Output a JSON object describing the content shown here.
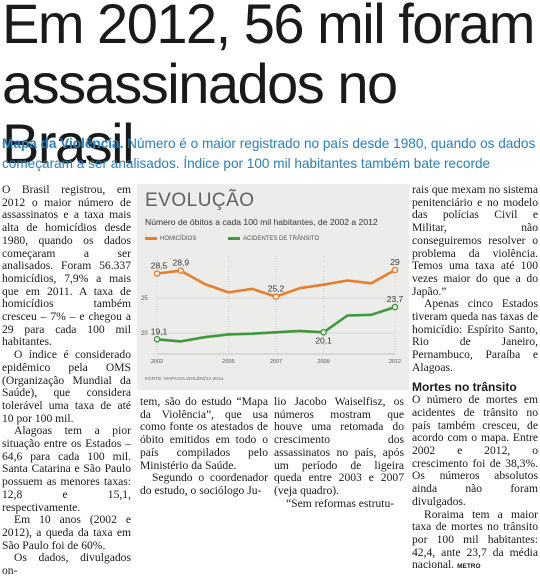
{
  "headline": "Em 2012, 56 mil foram assassinados no Brasil",
  "standfirst": {
    "kicker": "Mapa da Violência.",
    "text": " Número é o maior registrado no país desde 1980, quando os dados começaram a ser analisados. Índice por 100 mil habitantes também bate recorde"
  },
  "article": {
    "col1": [
      "O Brasil registrou, em 2012 o maior número de assassinatos e a taxa mais alta de homicídios desde 1980, quando os dados começaram a ser analisados. Foram 56.337 homicídios, 7,9% a mais que em 2011. A taxa de homicídios também cresceu – 7% – e chegou a 29 para cada 100 mil habitantes.",
      "O índice é considerado epidêmico pela OMS (Organização Mundial da Saúde), que considera tolerável uma taxa de até 10 por 100 mil.",
      "Alagoas tem a pior situação entre os Estados – 64,6 para cada 100 mil. Santa Catarina e São Paulo possuem as menores taxas: 12,8 e 15,1, respectivamente.",
      "Em 10 anos (2002 e 2012), a queda da taxa em São Paulo foi de 60%.",
      "Os dados, divulgados on-"
    ],
    "col2": [
      "tem, são do estudo “Mapa da Violência”, que usa como fonte os atestados de óbito emitidos em todo o país compilados pelo Ministério da Saúde.",
      "Segundo o coordenador do estudo, o sociólogo Ju-"
    ],
    "col3": [
      "lio Jacobo Waiselfisz, os números mostram que houve uma retomada do crescimento dos assassinatos no país, após um período de ligeira queda entre 2003 e 2007 (veja quadro).",
      "“Sem reformas estrutu-"
    ],
    "col4": [
      "rais que mexam no sistema penitenciário e no modelo das polícias Civil e Militar, não conseguiremos resolver o problema da violência. Temos uma taxa até 100 vezes maior do que a do Japão.”",
      "Apenas cinco Estados tiveram queda nas taxas de homicídio: Espírito Santo, Rio de Janeiro, Pernambuco, Paraíba e Alagoas."
    ],
    "subhead": "Mortes no trânsito",
    "col4b": [
      "O número de mortes em acidentes de trânsito no país também cresceu, de acordo com o mapa. Entre 2002 e 2012, o crescimento foi de 38,3%. Os números absolutos ainda não foram divulgados.",
      "Roraima tem a maior taxa de mortes no trânsito por 100 mil habitantes: 42,4, ante 23,7 da média nacional."
    ],
    "signature": "METRO"
  },
  "chart_data": {
    "type": "line",
    "title": "EVOLUÇÃO",
    "subtitle": "Número de óbitos a cada 100 mil habitantes, de 2002 a 2012",
    "x": [
      2002,
      2003,
      2004,
      2005,
      2006,
      2007,
      2008,
      2009,
      2010,
      2011,
      2012
    ],
    "x_tick_labels": [
      "2002",
      "2005",
      "2007",
      "2009",
      "2012"
    ],
    "y_tick_labels": [
      "25",
      "20"
    ],
    "ylim": [
      17,
      31
    ],
    "series": [
      {
        "name": "HOMICÍDIOS",
        "color": "#e87d2a",
        "values": [
          28.5,
          28.9,
          27.0,
          25.8,
          26.3,
          25.2,
          26.4,
          26.9,
          27.5,
          27.1,
          29.0
        ],
        "labels": {
          "0": "28,5",
          "1": "28,9",
          "5": "25,2",
          "10": "29"
        }
      },
      {
        "name": "ACIDENTES DE TRÂNSITO",
        "color": "#3f9a3c",
        "values": [
          19.1,
          18.8,
          19.4,
          19.8,
          19.9,
          20.1,
          20.3,
          20.1,
          22.5,
          22.6,
          23.7
        ],
        "labels": {
          "0": "19,1",
          "7": "20,1",
          "10": "23,7"
        }
      }
    ],
    "source": "FONTE: MAPA DA VIOLÊNCIA 2014",
    "grid": true,
    "legend": "top-left"
  }
}
